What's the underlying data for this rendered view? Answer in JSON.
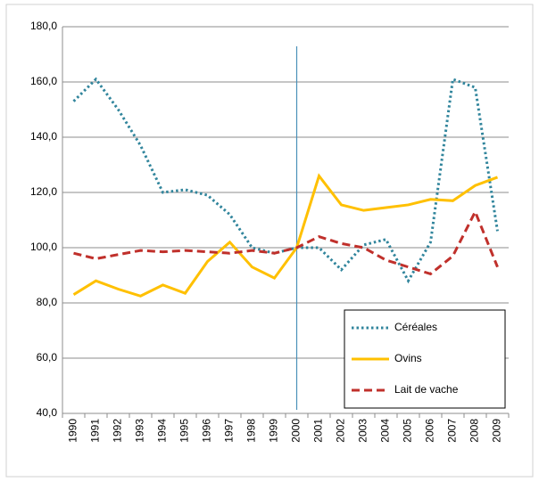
{
  "chart_data": {
    "type": "line",
    "categories": [
      "1990",
      "1991",
      "1992",
      "1993",
      "1994",
      "1995",
      "1996",
      "1997",
      "1998",
      "1999",
      "2000",
      "2001",
      "2002",
      "2003",
      "2004",
      "2005",
      "2006",
      "2007",
      "2008",
      "2009"
    ],
    "series": [
      {
        "name": "Céréales",
        "color": "#31859c",
        "dash": "dotted",
        "values": [
          153,
          161,
          150,
          137,
          120,
          121,
          119,
          112,
          100,
          98,
          100,
          100,
          92,
          101,
          103,
          88,
          102,
          161,
          158,
          106
        ]
      },
      {
        "name": "Ovins",
        "color": "#ffc000",
        "dash": "solid",
        "values": [
          83,
          88,
          85,
          82.5,
          86.5,
          83.5,
          95,
          102,
          93,
          89,
          100,
          126,
          115.5,
          113.5,
          114.5,
          115.5,
          117.5,
          117,
          122.5,
          125.5
        ]
      },
      {
        "name": "Lait de vache",
        "color": "#c0302b",
        "dash": "dashed",
        "values": [
          98,
          96,
          97.5,
          99,
          98.5,
          99,
          98.5,
          98,
          99,
          98,
          100,
          104,
          101.5,
          100,
          95.5,
          93,
          90.5,
          97,
          113,
          93
        ]
      }
    ],
    "ylim": [
      40,
      180
    ],
    "yticks": [
      {
        "value": 40,
        "label": "40,0"
      },
      {
        "value": 60,
        "label": "60,0"
      },
      {
        "value": 80,
        "label": "80,0"
      },
      {
        "value": 100,
        "label": "100,0"
      },
      {
        "value": 120,
        "label": "120,0"
      },
      {
        "value": 140,
        "label": "140,0"
      },
      {
        "value": 160,
        "label": "160,0"
      },
      {
        "value": 180,
        "label": "180,0"
      }
    ],
    "grid": true,
    "legend": "lower right",
    "vline": "2000"
  }
}
